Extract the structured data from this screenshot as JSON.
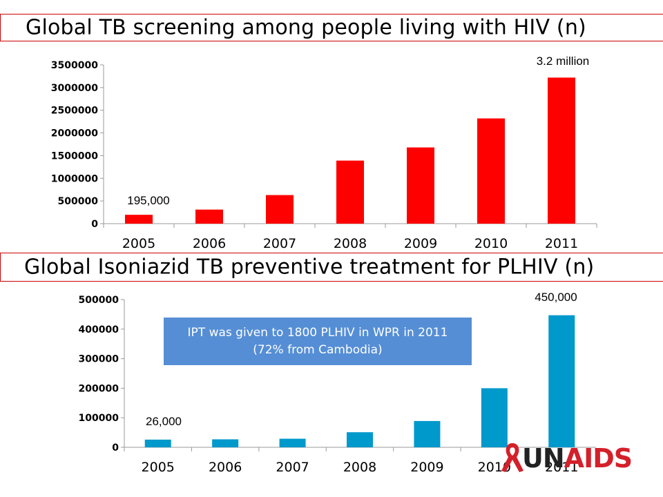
{
  "chart_data": [
    {
      "type": "bar",
      "title": "Global TB screening among people living with HIV (n)",
      "categories": [
        "2005",
        "2006",
        "2007",
        "2008",
        "2009",
        "2010",
        "2011"
      ],
      "values": [
        195000,
        310000,
        630000,
        1390000,
        1680000,
        2320000,
        3220000
      ],
      "ylim": [
        0,
        3500000
      ],
      "yticks": [
        "0",
        "500000",
        "1000000",
        "1500000",
        "2000000",
        "2500000",
        "3000000",
        "3500000"
      ],
      "ytick_values": [
        0,
        500000,
        1000000,
        1500000,
        2000000,
        2500000,
        3000000,
        3500000
      ],
      "bar_color": "#ff0000",
      "annotations": [
        "195,000",
        "3.2 million"
      ],
      "grid": false,
      "legend": "none"
    },
    {
      "type": "bar",
      "title": "Global Isoniazid TB preventive treatment for PLHIV (n)",
      "categories": [
        "2005",
        "2006",
        "2007",
        "2008",
        "2009",
        "2010",
        "2011"
      ],
      "values": [
        26000,
        27000,
        29000,
        51000,
        89000,
        200000,
        447000
      ],
      "ylim": [
        0,
        500000
      ],
      "yticks": [
        "0",
        "100000",
        "200000",
        "300000",
        "400000",
        "500000"
      ],
      "ytick_values": [
        0,
        100000,
        200000,
        300000,
        400000,
        500000
      ],
      "bar_color": "#0099cc",
      "annotations": [
        "26,000",
        "450,000"
      ],
      "callout": "IPT was given to 1800 PLHIV in WPR  in 2011 (72% from Cambodia)",
      "grid": false,
      "legend": "none"
    }
  ],
  "logo_text": "UNAIDS",
  "logo_colors": {
    "un": "#222222",
    "aids": "#d4202a",
    "ribbon": "#d4202a"
  }
}
